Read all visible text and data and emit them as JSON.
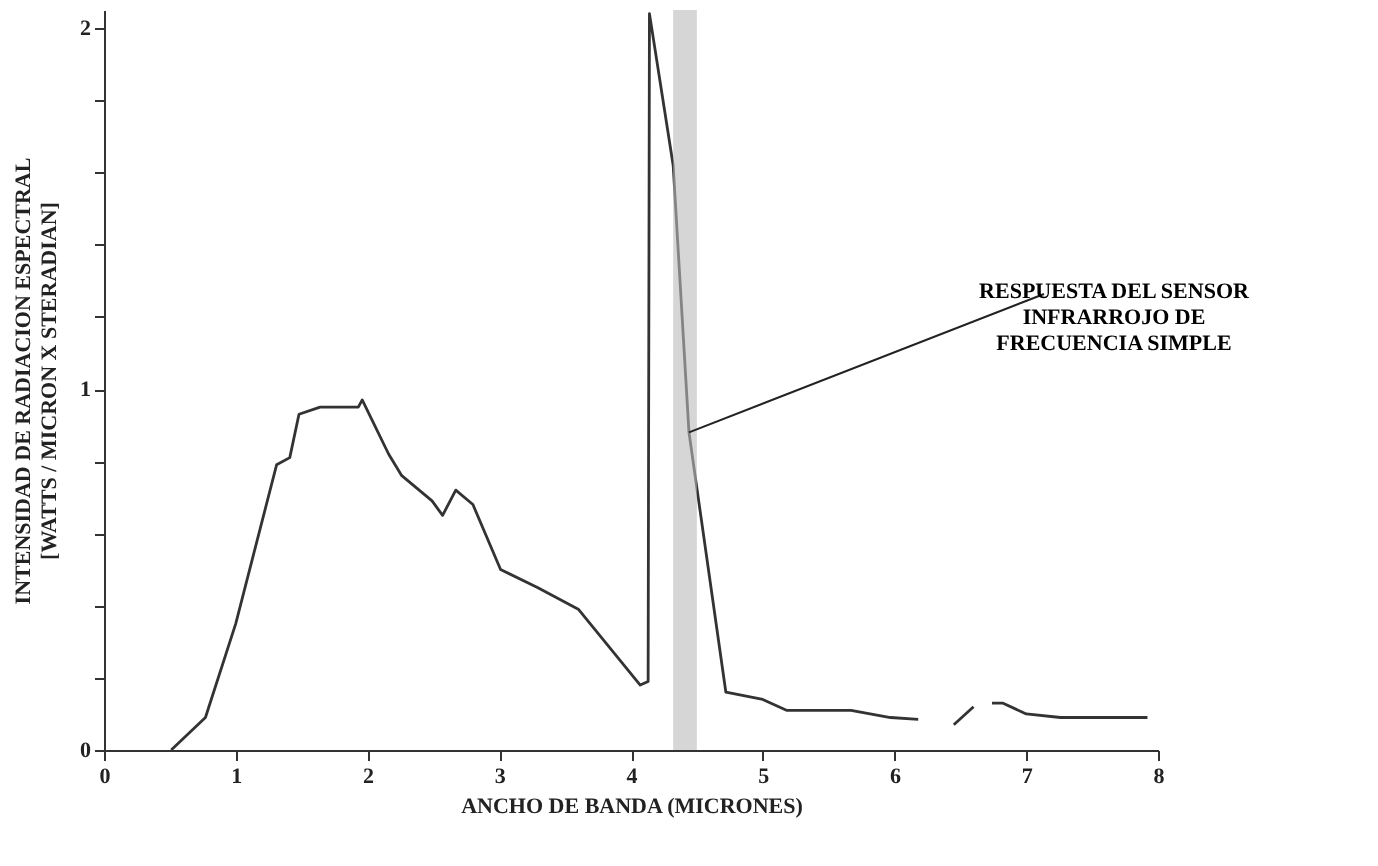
{
  "chart_data": {
    "type": "line",
    "xlabel": "ANCHO DE BANDA (MICRONES)",
    "ylabel": "INTENSIDAD DE RADIACION ESPECTRAL [WATTS / MICRON X STERADIAN]",
    "x": [
      0.51,
      0.77,
      1.0,
      1.31,
      1.41,
      1.48,
      1.64,
      1.93,
      1.96,
      2.16,
      2.26,
      2.49,
      2.57,
      2.67,
      2.8,
      3.01,
      3.29,
      3.6,
      4.07,
      4.13,
      4.14,
      4.32,
      4.44,
      4.72,
      5.0,
      5.18,
      5.67,
      5.97,
      6.18,
      6.3,
      6.45,
      6.6,
      6.68,
      6.74,
      6.82,
      7.0,
      7.26,
      7.92
    ],
    "series": [
      {
        "color": "#333333",
        "values": [
          0,
          0.09,
          0.35,
          0.79,
          0.81,
          0.93,
          0.95,
          0.95,
          0.97,
          0.82,
          0.76,
          0.69,
          0.65,
          0.72,
          0.68,
          0.5,
          0.45,
          0.39,
          0.18,
          0.19,
          2.04,
          1.62,
          0.88,
          0.16,
          0.14,
          0.11,
          0.11,
          0.09,
          0.085,
          null,
          0.07,
          0.12,
          null,
          0.13,
          0.13,
          0.1,
          0.09,
          0.09
        ]
      }
    ],
    "xlim": [
      0,
      8
    ],
    "xticks": [
      0,
      1,
      2,
      3,
      4,
      5,
      6,
      7,
      8
    ],
    "ylim": [
      0,
      2.05
    ],
    "yticks": [
      0,
      {
        "value": 0.2,
        "label": null
      },
      {
        "value": 0.4,
        "label": null
      },
      {
        "value": 0.6,
        "label": null
      },
      {
        "value": 0.8,
        "label": null
      },
      1,
      {
        "value": 1.2,
        "label": null
      },
      {
        "value": 1.4,
        "label": null
      },
      {
        "value": 1.6,
        "label": null
      },
      {
        "value": 1.8,
        "label": null
      },
      2
    ],
    "bands": [
      {
        "axis": "x",
        "from": 4.32,
        "to": 4.5,
        "color": "#bbbbbb"
      }
    ],
    "annotations": [
      {
        "text": "RESPUESTA DEL SENSOR INFRARROJO DE FRECUENCIA SIMPLE",
        "x": 4.44,
        "y": 0.88
      }
    ],
    "grid": false
  }
}
